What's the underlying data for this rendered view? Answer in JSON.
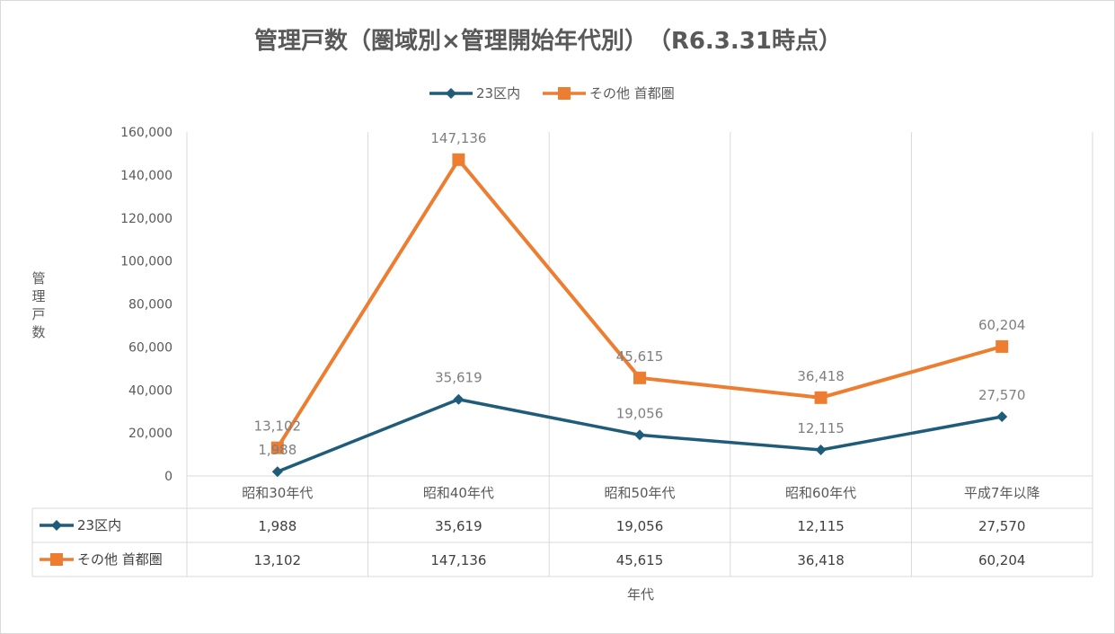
{
  "chart_data": {
    "type": "line",
    "title": "管理戸数（圏域別×管理開始年代別）　（R6.3.31時点）",
    "xlabel": "年代",
    "ylabel": "管理戸数",
    "categories": [
      "昭和30年代",
      "昭和40年代",
      "昭和50年代",
      "昭和60年代",
      "平成7年以降"
    ],
    "ylim": [
      0,
      160000
    ],
    "yticks": [
      "0",
      "20,000",
      "40,000",
      "60,000",
      "80,000",
      "100,000",
      "120,000",
      "140,000",
      "160,000"
    ],
    "grid": "vertical",
    "legend_position": "top",
    "data_table": true,
    "series": [
      {
        "name": "23区内",
        "color": "#1f5c7a",
        "marker": "diamond",
        "values": [
          1988,
          35619,
          19056,
          12115,
          27570
        ],
        "labels": [
          "1,988",
          "35,619",
          "19,056",
          "12,115",
          "27,570"
        ]
      },
      {
        "name": "その他 首都圏",
        "color": "#ed7d31",
        "marker": "square",
        "values": [
          13102,
          147136,
          45615,
          36418,
          60204
        ],
        "labels": [
          "13,102",
          "147,136",
          "45,615",
          "36,418",
          "60,204"
        ]
      }
    ]
  }
}
